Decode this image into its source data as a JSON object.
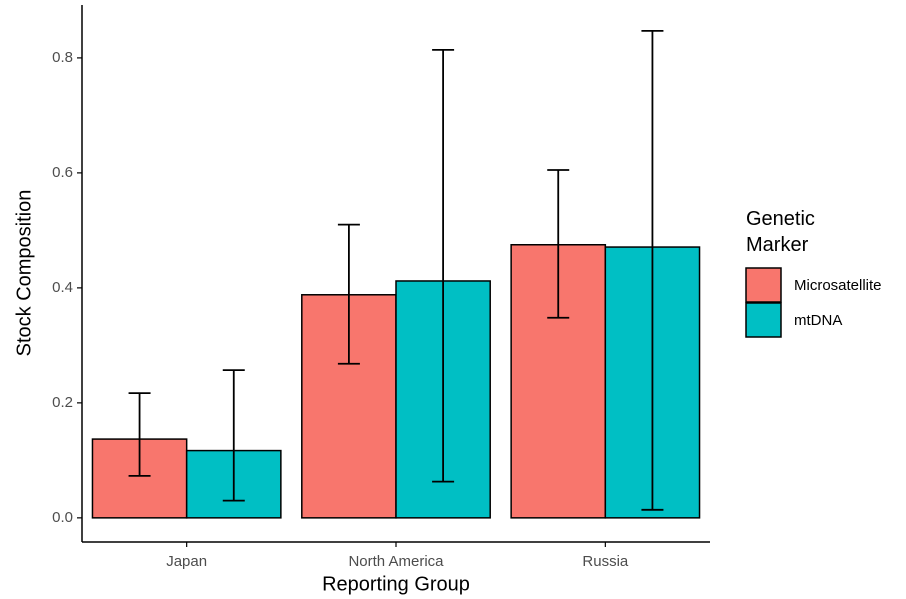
{
  "chart_data": {
    "type": "bar",
    "x_label": "Reporting Group",
    "y_label": "Stock Composition",
    "legend_title": "Genetic\nMarker",
    "categories": [
      "Japan",
      "North America",
      "Russia"
    ],
    "series": [
      {
        "name": "Microsatellite",
        "color": "#f8766d",
        "values": [
          0.137,
          0.388,
          0.475
        ],
        "lower": [
          0.073,
          0.268,
          0.348
        ],
        "upper": [
          0.217,
          0.51,
          0.605
        ]
      },
      {
        "name": "mtDNA",
        "color": "#00bfc4",
        "values": [
          0.117,
          0.412,
          0.471
        ],
        "lower": [
          0.03,
          0.063,
          0.014
        ],
        "upper": [
          0.257,
          0.814,
          0.847
        ]
      }
    ],
    "ylim": [
      -0.042,
      0.892
    ],
    "yticks": [
      {
        "value": 0,
        "label": "0.0"
      },
      0.2,
      0.4,
      0.6,
      0.8
    ],
    "legend": "right"
  }
}
